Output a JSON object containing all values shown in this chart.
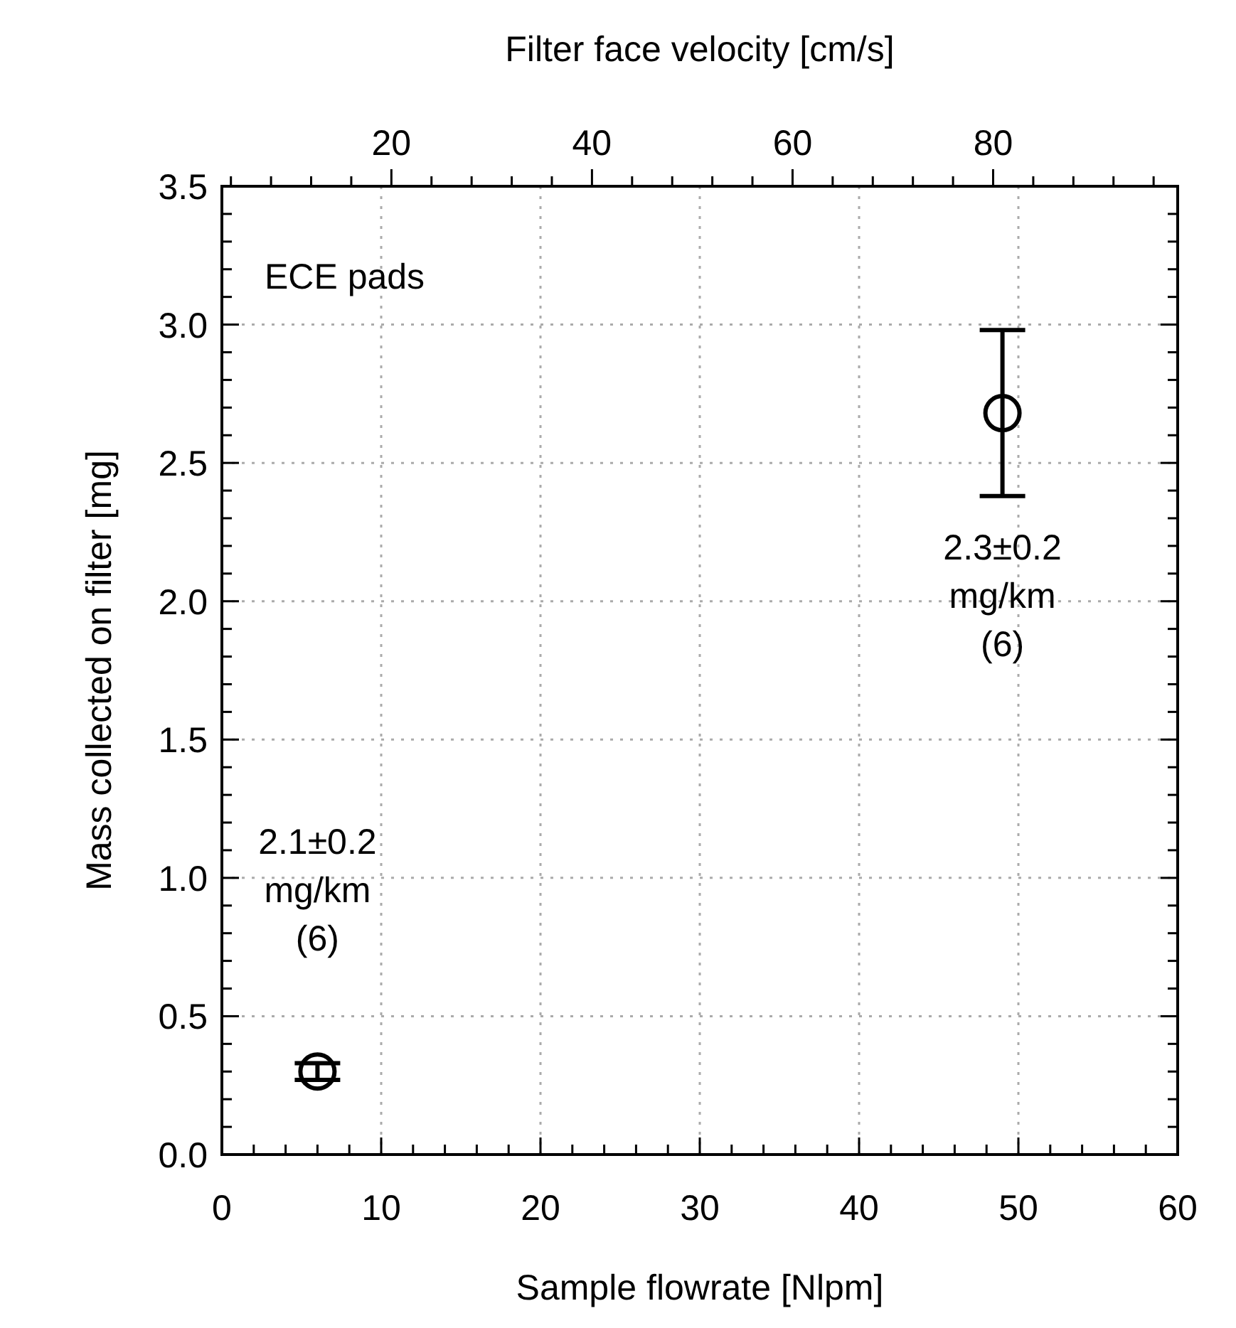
{
  "chart_data": {
    "type": "scatter",
    "xlabel": "Sample flowrate [Nlpm]",
    "ylabel": "Mass collected on filter [mg]",
    "x2label": "Filter face velocity [cm/s]",
    "x": [
      6,
      49
    ],
    "values": [
      0.3,
      2.68
    ],
    "errors": [
      0.03,
      0.3
    ],
    "color": "#000000",
    "marker": "circle",
    "grid": true,
    "xlim": [
      0,
      60
    ],
    "ylim": [
      0,
      3.5
    ],
    "x2lim": [
      3.1,
      98.4
    ],
    "xticks": [
      0,
      {
        "value": 2,
        "label": null
      },
      {
        "value": 4,
        "label": null
      },
      {
        "value": 6,
        "label": null
      },
      {
        "value": 8,
        "label": null
      },
      10,
      {
        "value": 12,
        "label": null
      },
      {
        "value": 14,
        "label": null
      },
      {
        "value": 16,
        "label": null
      },
      {
        "value": 18,
        "label": null
      },
      20,
      {
        "value": 22,
        "label": null
      },
      {
        "value": 24,
        "label": null
      },
      {
        "value": 26,
        "label": null
      },
      {
        "value": 28,
        "label": null
      },
      30,
      {
        "value": 32,
        "label": null
      },
      {
        "value": 34,
        "label": null
      },
      {
        "value": 36,
        "label": null
      },
      {
        "value": 38,
        "label": null
      },
      40,
      {
        "value": 42,
        "label": null
      },
      {
        "value": 44,
        "label": null
      },
      {
        "value": 46,
        "label": null
      },
      {
        "value": 48,
        "label": null
      },
      50,
      {
        "value": 52,
        "label": null
      },
      {
        "value": 54,
        "label": null
      },
      {
        "value": 56,
        "label": null
      },
      {
        "value": 58,
        "label": null
      },
      60
    ],
    "yticks": [
      {
        "value": 0,
        "label": "0.0"
      },
      {
        "value": 0.1,
        "label": null
      },
      {
        "value": 0.2,
        "label": null
      },
      {
        "value": 0.3,
        "label": null
      },
      {
        "value": 0.4,
        "label": null
      },
      0.5,
      {
        "value": 0.6,
        "label": null
      },
      {
        "value": 0.7,
        "label": null
      },
      {
        "value": 0.8,
        "label": null
      },
      {
        "value": 0.9,
        "label": null
      },
      {
        "value": 1,
        "label": "1.0"
      },
      {
        "value": 1.1,
        "label": null
      },
      {
        "value": 1.2,
        "label": null
      },
      {
        "value": 1.3,
        "label": null
      },
      {
        "value": 1.4,
        "label": null
      },
      1.5,
      {
        "value": 1.6,
        "label": null
      },
      {
        "value": 1.7,
        "label": null
      },
      {
        "value": 1.8,
        "label": null
      },
      {
        "value": 1.9,
        "label": null
      },
      {
        "value": 2,
        "label": "2.0"
      },
      {
        "value": 2.1,
        "label": null
      },
      {
        "value": 2.2,
        "label": null
      },
      {
        "value": 2.3,
        "label": null
      },
      {
        "value": 2.4,
        "label": null
      },
      2.5,
      {
        "value": 2.6,
        "label": null
      },
      {
        "value": 2.7,
        "label": null
      },
      {
        "value": 2.8,
        "label": null
      },
      {
        "value": 2.9,
        "label": null
      },
      {
        "value": 3,
        "label": "3.0"
      },
      {
        "value": 3.1,
        "label": null
      },
      {
        "value": 3.2,
        "label": null
      },
      {
        "value": 3.3,
        "label": null
      },
      {
        "value": 3.4,
        "label": null
      },
      3.5
    ],
    "x2ticks": [
      {
        "value": 4,
        "label": null
      },
      {
        "value": 8,
        "label": null
      },
      {
        "value": 12,
        "label": null
      },
      {
        "value": 16,
        "label": null
      },
      20,
      {
        "value": 24,
        "label": null
      },
      {
        "value": 28,
        "label": null
      },
      {
        "value": 32,
        "label": null
      },
      {
        "value": 36,
        "label": null
      },
      40,
      {
        "value": 44,
        "label": null
      },
      {
        "value": 48,
        "label": null
      },
      {
        "value": 52,
        "label": null
      },
      {
        "value": 56,
        "label": null
      },
      60,
      {
        "value": 64,
        "label": null
      },
      {
        "value": 68,
        "label": null
      },
      {
        "value": 72,
        "label": null
      },
      {
        "value": 76,
        "label": null
      },
      80,
      {
        "value": 84,
        "label": null
      },
      {
        "value": 88,
        "label": null
      },
      {
        "value": 92,
        "label": null
      },
      {
        "value": 96,
        "label": null
      }
    ],
    "annotations": [
      "ECE pads",
      "2.1±0.2\nmg/km\n(6)",
      "2.3±0.2\nmg/km\n(6)"
    ]
  }
}
